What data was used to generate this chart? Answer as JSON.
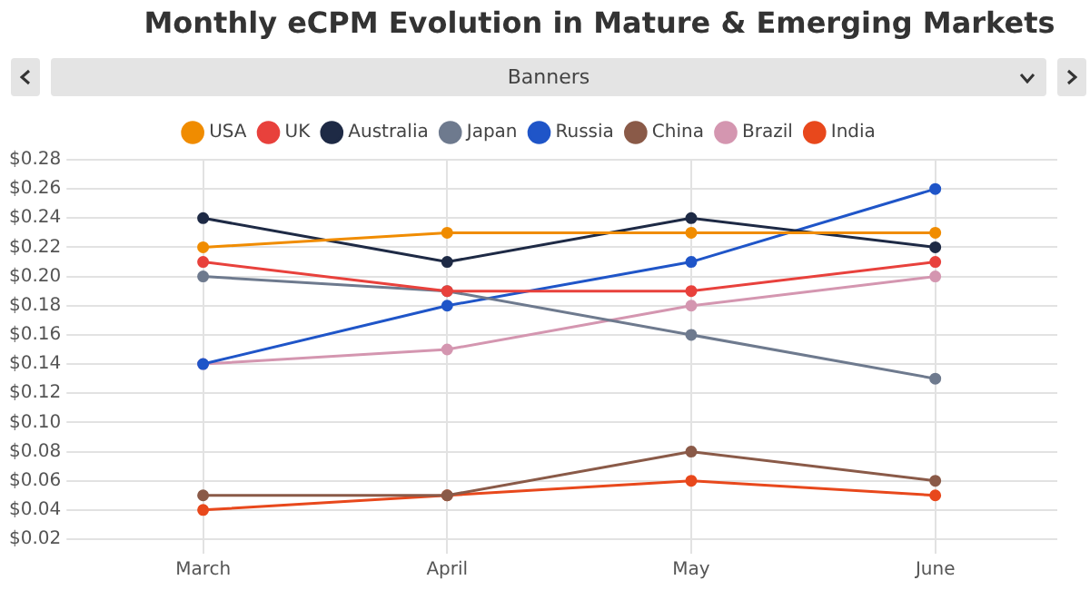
{
  "chart_data": {
    "type": "line",
    "title": "Monthly eCPM Evolution in Mature & Emerging Markets",
    "subtitle": "Banners",
    "categories": [
      "March",
      "April",
      "May",
      "June"
    ],
    "series": [
      {
        "name": "USA",
        "color": "#f08c00",
        "values": [
          0.22,
          0.23,
          0.23,
          0.23
        ]
      },
      {
        "name": "UK",
        "color": "#e8413c",
        "values": [
          0.21,
          0.19,
          0.19,
          0.21
        ]
      },
      {
        "name": "Australia",
        "color": "#1e2a45",
        "values": [
          0.24,
          0.21,
          0.24,
          0.22
        ]
      },
      {
        "name": "Japan",
        "color": "#6e7a8e",
        "values": [
          0.2,
          0.19,
          0.16,
          0.13
        ]
      },
      {
        "name": "Russia",
        "color": "#1f55c8",
        "values": [
          0.14,
          0.18,
          0.21,
          0.26
        ]
      },
      {
        "name": "China",
        "color": "#8a5a48",
        "values": [
          0.05,
          0.05,
          0.08,
          0.06
        ]
      },
      {
        "name": "Brazil",
        "color": "#d496b0",
        "values": [
          0.14,
          0.15,
          0.18,
          0.2
        ]
      },
      {
        "name": "India",
        "color": "#e8481c",
        "values": [
          0.04,
          0.05,
          0.06,
          0.05
        ]
      }
    ],
    "ylim": [
      0.02,
      0.28
    ],
    "yticks": [
      {
        "value": 0.02,
        "label": "$0.02"
      },
      {
        "value": 0.04,
        "label": "$0.04"
      },
      {
        "value": 0.06,
        "label": "$0.06"
      },
      {
        "value": 0.08,
        "label": "$0.08"
      },
      {
        "value": 0.1,
        "label": "$0.10"
      },
      {
        "value": 0.12,
        "label": "$0.12"
      },
      {
        "value": 0.14,
        "label": "$0.14"
      },
      {
        "value": 0.16,
        "label": "$0.16"
      },
      {
        "value": 0.18,
        "label": "$0.18"
      },
      {
        "value": 0.2,
        "label": "$0.20"
      },
      {
        "value": 0.22,
        "label": "$0.22"
      },
      {
        "value": 0.24,
        "label": "$0.24"
      },
      {
        "value": 0.26,
        "label": "$0.26"
      },
      {
        "value": 0.28,
        "label": "$0.28"
      }
    ],
    "grid": true,
    "legend": "top",
    "marker": "circle",
    "line_style": "solid"
  }
}
